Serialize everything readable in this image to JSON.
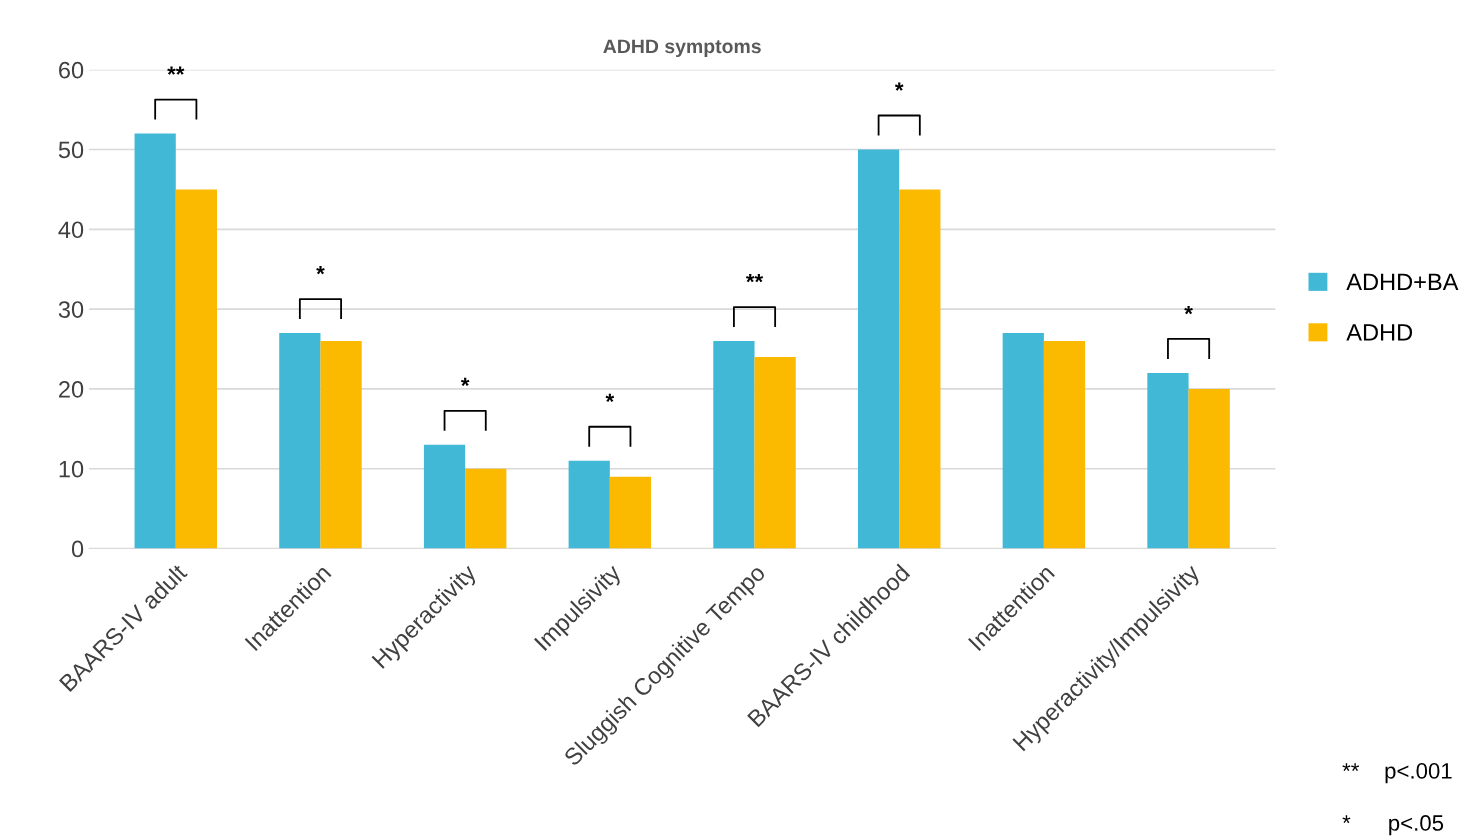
{
  "chart_data": {
    "type": "bar",
    "title": "ADHD symptoms",
    "categories": [
      "BAARS-IV adult",
      "Inattention",
      "Hyperactivity",
      "Impulsivity",
      "Sluggish Cognitive Tempo",
      "BAARS-IV childhood",
      "Inattention",
      "Hyperactivity/Impulsivity"
    ],
    "series": [
      {
        "name": "ADHD+BA",
        "color": "#41b8d5",
        "values": [
          52,
          27,
          13,
          11,
          26,
          50,
          27,
          22
        ]
      },
      {
        "name": "ADHD",
        "color": "#fbb900",
        "values": [
          45,
          26,
          10,
          9,
          24,
          45,
          26,
          20
        ]
      }
    ],
    "ylim": [
      0,
      60
    ],
    "yticks": [
      0,
      10,
      20,
      30,
      40,
      50,
      60
    ],
    "grid": "y",
    "legend": "right",
    "annotations": [
      "**",
      "*",
      "*",
      "*",
      "**",
      "*",
      "*",
      "**    p<.001",
      "*      p<.05"
    ]
  }
}
